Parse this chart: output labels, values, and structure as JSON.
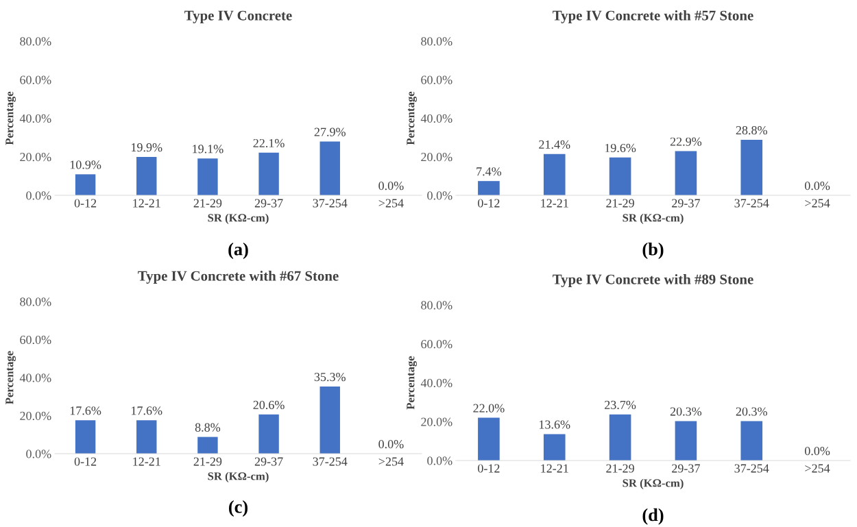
{
  "chart_data": [
    {
      "type": "bar",
      "title": "Type IV Concrete",
      "xlabel": "SR (KΩ-cm)",
      "ylabel": "Percentage",
      "annotations": [
        "(a)"
      ],
      "categories": [
        "0-12",
        "12-21",
        "21-29",
        "29-37",
        "37-254",
        ">254"
      ],
      "values": [
        10.9,
        19.9,
        19.1,
        22.1,
        27.9,
        0.0
      ],
      "value_labels": [
        "10.9%",
        "19.9%",
        "19.1%",
        "22.1%",
        "27.9%",
        "0.0%"
      ],
      "color": "#4472c4",
      "ylim": [
        0,
        80
      ],
      "yticks": [
        {
          "value": 0,
          "label": "0.0%"
        },
        {
          "value": 20,
          "label": "20.0%"
        },
        {
          "value": 40,
          "label": "40.0%"
        },
        {
          "value": 60,
          "label": "60.0%"
        },
        {
          "value": 80,
          "label": "80.0%"
        }
      ],
      "grid": false,
      "legend": false
    },
    {
      "type": "bar",
      "title": "Type IV Concrete with #57 Stone",
      "xlabel": "SR (KΩ-cm)",
      "ylabel": "Percentage",
      "annotations": [
        "(b)"
      ],
      "categories": [
        "0-12",
        "12-21",
        "21-29",
        "29-37",
        "37-254",
        ">254"
      ],
      "values": [
        7.4,
        21.4,
        19.6,
        22.9,
        28.8,
        0.0
      ],
      "value_labels": [
        "7.4%",
        "21.4%",
        "19.6%",
        "22.9%",
        "28.8%",
        "0.0%"
      ],
      "color": "#4472c4",
      "ylim": [
        0,
        80
      ],
      "yticks": [
        {
          "value": 0,
          "label": "0.0%"
        },
        {
          "value": 20,
          "label": "20.0%"
        },
        {
          "value": 40,
          "label": "40.0%"
        },
        {
          "value": 60,
          "label": "60.0%"
        },
        {
          "value": 80,
          "label": "80.0%"
        }
      ],
      "grid": false,
      "legend": false
    },
    {
      "type": "bar",
      "title": "Type IV Concrete with #67 Stone",
      "xlabel": "SR (KΩ-cm)",
      "ylabel": "Percentage",
      "annotations": [
        "(c)"
      ],
      "categories": [
        "0-12",
        "12-21",
        "21-29",
        "29-37",
        "37-254",
        ">254"
      ],
      "values": [
        17.6,
        17.6,
        8.8,
        20.6,
        35.3,
        0.0
      ],
      "value_labels": [
        "17.6%",
        "17.6%",
        "8.8%",
        "20.6%",
        "35.3%",
        "0.0%"
      ],
      "color": "#4472c4",
      "ylim": [
        0,
        80
      ],
      "yticks": [
        {
          "value": 0,
          "label": "0.0%"
        },
        {
          "value": 20,
          "label": "20.0%"
        },
        {
          "value": 40,
          "label": "40.0%"
        },
        {
          "value": 60,
          "label": "60.0%"
        },
        {
          "value": 80,
          "label": "80.0%"
        }
      ],
      "grid": false,
      "legend": false
    },
    {
      "type": "bar",
      "title": "Type IV Concrete with #89 Stone",
      "xlabel": "SR (KΩ-cm)",
      "ylabel": "Percentage",
      "annotations": [
        "(d)"
      ],
      "categories": [
        "0-12",
        "12-21",
        "21-29",
        "29-37",
        "37-254",
        ">254"
      ],
      "values": [
        22.0,
        13.6,
        23.7,
        20.3,
        20.3,
        0.0
      ],
      "value_labels": [
        "22.0%",
        "13.6%",
        "23.7%",
        "20.3%",
        "20.3%",
        "0.0%"
      ],
      "color": "#4472c4",
      "ylim": [
        0,
        80
      ],
      "yticks": [
        {
          "value": 0,
          "label": "0.0%"
        },
        {
          "value": 20,
          "label": "20.0%"
        },
        {
          "value": 40,
          "label": "40.0%"
        },
        {
          "value": 60,
          "label": "60.0%"
        },
        {
          "value": 80,
          "label": "80.0%"
        }
      ],
      "grid": false,
      "legend": false
    }
  ]
}
